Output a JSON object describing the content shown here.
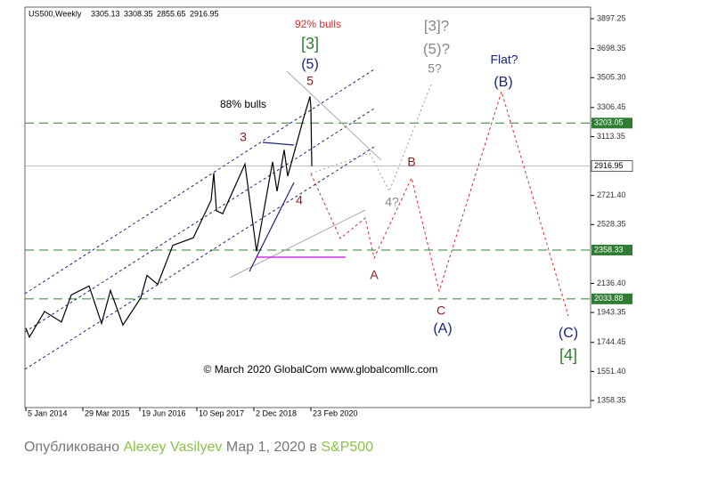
{
  "header": {
    "symbol": "US500,Weekly",
    "ohlc": [
      3305.13,
      3308.35,
      2855.65,
      2916.95
    ]
  },
  "chart_data": {
    "type": "line",
    "x": [
      "2014-01-05",
      "2014-02-02",
      "2014-06-01",
      "2014-10-12",
      "2014-12-28",
      "2015-05-17",
      "2015-08-23",
      "2015-11-01",
      "2016-02-07",
      "2016-06-26",
      "2016-08-14",
      "2016-11-06",
      "2017-03-05",
      "2017-08-13",
      "2017-12-31",
      "2018-01-21",
      "2018-02-11",
      "2018-04-01",
      "2018-09-23",
      "2018-12-23",
      "2019-04-28",
      "2019-06-02",
      "2019-07-28",
      "2019-08-25",
      "2019-12-29",
      "2020-02-16",
      "2020-02-23",
      "2020-03-01"
    ],
    "series": [
      {
        "name": "US500",
        "color": "#000000",
        "values": [
          1840,
          1780,
          1950,
          1880,
          2060,
          2120,
          1870,
          2090,
          1860,
          2040,
          2190,
          2130,
          2390,
          2440,
          2690,
          2870,
          2620,
          2600,
          2930,
          2350,
          2945,
          2750,
          3025,
          2850,
          3240,
          3380,
          3308,
          2916.95
        ]
      }
    ],
    "xlim": [
      "2013-12-29",
      "2026-03-01"
    ],
    "xticks": [
      {
        "value": "2014-01-05",
        "label": "5 Jan 2014"
      },
      {
        "value": "2015-03-29",
        "label": "29 Mar 2015"
      },
      {
        "value": "2016-06-19",
        "label": "19 Jun 2016"
      },
      {
        "value": "2017-09-10",
        "label": "10 Sep 2017"
      },
      {
        "value": "2018-12-02",
        "label": "2 Dec 2018"
      },
      {
        "value": "2020-02-23",
        "label": "23 Feb 2020"
      }
    ],
    "ylim": [
      1311,
      3974.2
    ],
    "yticks": [
      3897.25,
      {
        "value": 3698.35,
        "label": "3698.35"
      },
      {
        "value": 3505.3,
        "label": "3505.30"
      },
      3306.45,
      3113.35,
      {
        "value": 2721.4,
        "label": "2721.40"
      },
      2528.35,
      {
        "value": 2136.4,
        "label": "2136.40"
      },
      1943.35,
      1744.45,
      {
        "value": 1551.4,
        "label": "1551.40"
      },
      1358.35
    ],
    "levels": [
      3203.05,
      2358.33,
      2033.88
    ],
    "last_price": 2916.95,
    "annotations": [
      "92% bulls",
      "[3]",
      "(5)",
      "5",
      "88% bulls",
      "3",
      "4",
      "[3]?",
      "(5)?",
      "5?",
      "4?",
      "B",
      "A",
      "C",
      "(A)",
      "Flat?",
      "(B)",
      "(C)",
      "[4]"
    ],
    "watermark": "© March 2020 GlobalCom www.globalcomllc.com"
  },
  "footer": {
    "prefix": "Опубликовано",
    "author": "Alexey Vasilyev",
    "date": "Мар 1, 2020 в",
    "symbol": "S&P500"
  }
}
